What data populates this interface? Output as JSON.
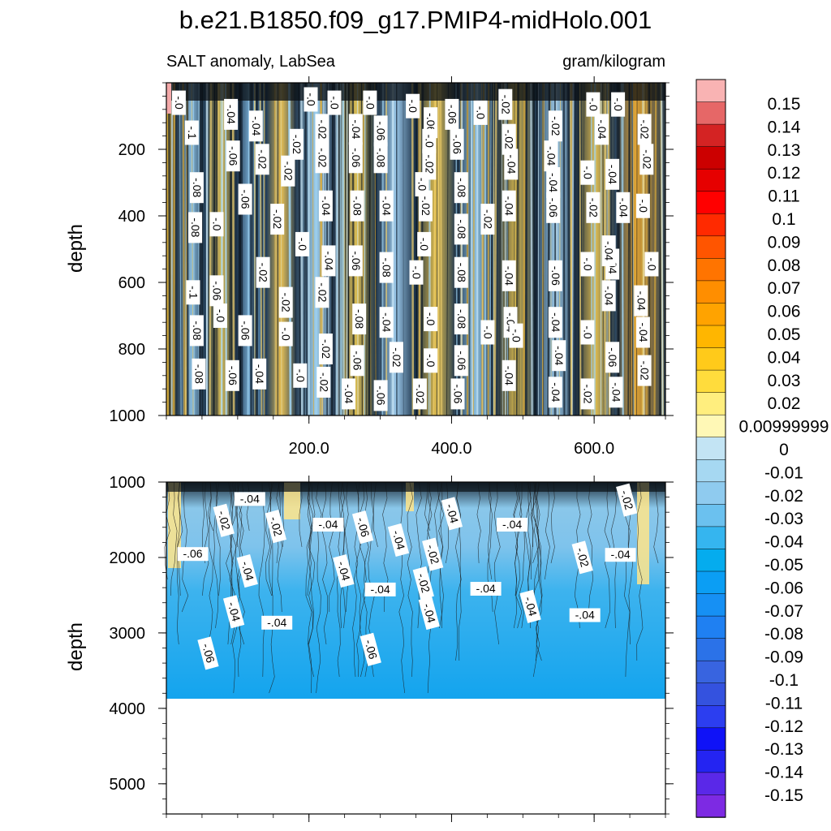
{
  "chart_data": {
    "type": "contour",
    "title": "b.e21.B1850.f09_g17.PMIP4-midHolo.001",
    "subtitle_left": "SALT anomaly, LabSea",
    "subtitle_right": "gram/kilogram",
    "panels": [
      {
        "name": "upper",
        "ylabel": "depth",
        "ylim": [
          1000,
          0
        ],
        "xlim": [
          0,
          700
        ],
        "yticks": [
          "200",
          "400",
          "600",
          "800",
          "1000"
        ],
        "ytick_values": [
          200,
          400,
          600,
          800,
          1000
        ],
        "xticks": [
          "200.0",
          "400.0",
          "600.0"
        ],
        "xtick_values": [
          200,
          400,
          600
        ],
        "contour_labels": [
          {
            "t": "-.0",
            "x": 17,
            "y": 60
          },
          {
            "t": "-.04",
            "x": 90,
            "y": 95
          },
          {
            "t": "-.04",
            "x": 125,
            "y": 130
          },
          {
            "t": "-.1",
            "x": 35,
            "y": 150
          },
          {
            "t": "-.0",
            "x": 202,
            "y": 50
          },
          {
            "t": "-.0",
            "x": 235,
            "y": 60
          },
          {
            "t": "-.0",
            "x": 285,
            "y": 60
          },
          {
            "t": "-.0",
            "x": 345,
            "y": 70
          },
          {
            "t": "-.06",
            "x": 400,
            "y": 95
          },
          {
            "t": "-.0",
            "x": 440,
            "y": 90
          },
          {
            "t": "-.02",
            "x": 475,
            "y": 65
          },
          {
            "t": "-.02",
            "x": 545,
            "y": 130
          },
          {
            "t": "-.0",
            "x": 598,
            "y": 65
          },
          {
            "t": "-.0",
            "x": 633,
            "y": 65
          },
          {
            "t": "-.02",
            "x": 218,
            "y": 140
          },
          {
            "t": "-.04",
            "x": 265,
            "y": 140
          },
          {
            "t": "-.06",
            "x": 300,
            "y": 145
          },
          {
            "t": "-.06",
            "x": 370,
            "y": 120
          },
          {
            "t": "-.04",
            "x": 610,
            "y": 140
          },
          {
            "t": "-.02",
            "x": 670,
            "y": 140
          },
          {
            "t": "-.02",
            "x": 480,
            "y": 170
          },
          {
            "t": "-.02",
            "x": 182,
            "y": 185
          },
          {
            "t": "-.02",
            "x": 368,
            "y": 245
          },
          {
            "t": "-.06",
            "x": 93,
            "y": 220
          },
          {
            "t": "-.02",
            "x": 134,
            "y": 230
          },
          {
            "t": "-.06",
            "x": 407,
            "y": 185
          },
          {
            "t": "-.04",
            "x": 539,
            "y": 220
          },
          {
            "t": "-.02",
            "x": 673,
            "y": 230
          },
          {
            "t": "-.02",
            "x": 218,
            "y": 225
          },
          {
            "t": "-.06",
            "x": 265,
            "y": 225
          },
          {
            "t": "-.08",
            "x": 300,
            "y": 225
          },
          {
            "t": "-.0",
            "x": 368,
            "y": 175
          },
          {
            "t": "-.04",
            "x": 483,
            "y": 245
          },
          {
            "t": "-.08",
            "x": 413,
            "y": 315
          },
          {
            "t": "-.02",
            "x": 170,
            "y": 265
          },
          {
            "t": "-.08",
            "x": 42,
            "y": 315
          },
          {
            "t": "-.04",
            "x": 542,
            "y": 300
          },
          {
            "t": "-.0",
            "x": 590,
            "y": 270
          },
          {
            "t": "-.04",
            "x": 625,
            "y": 275
          },
          {
            "t": "-.0",
            "x": 358,
            "y": 305
          },
          {
            "t": "-.06",
            "x": 110,
            "y": 350
          },
          {
            "t": "-.04",
            "x": 223,
            "y": 370
          },
          {
            "t": "-.08",
            "x": 267,
            "y": 370
          },
          {
            "t": "-.04",
            "x": 308,
            "y": 370
          },
          {
            "t": "-.02",
            "x": 363,
            "y": 370
          },
          {
            "t": "-.04",
            "x": 480,
            "y": 370
          },
          {
            "t": "-.06",
            "x": 542,
            "y": 375
          },
          {
            "t": "-.02",
            "x": 598,
            "y": 375
          },
          {
            "t": "-.04",
            "x": 640,
            "y": 375
          },
          {
            "t": "-.0",
            "x": 668,
            "y": 370
          },
          {
            "t": "-.08",
            "x": 40,
            "y": 435
          },
          {
            "t": "-.0",
            "x": 70,
            "y": 425
          },
          {
            "t": "-.02",
            "x": 155,
            "y": 410
          },
          {
            "t": "-.08",
            "x": 413,
            "y": 440
          },
          {
            "t": "-.02",
            "x": 450,
            "y": 410
          },
          {
            "t": "-.0",
            "x": 190,
            "y": 485
          },
          {
            "t": "-.06",
            "x": 265,
            "y": 535
          },
          {
            "t": "-.08",
            "x": 308,
            "y": 555
          },
          {
            "t": "-.0",
            "x": 361,
            "y": 485
          },
          {
            "t": "-.04",
            "x": 227,
            "y": 535
          },
          {
            "t": "-.02",
            "x": 135,
            "y": 570
          },
          {
            "t": "-.0",
            "x": 350,
            "y": 570
          },
          {
            "t": "-.08",
            "x": 413,
            "y": 570
          },
          {
            "t": "-.04",
            "x": 480,
            "y": 580
          },
          {
            "t": "-.06",
            "x": 545,
            "y": 580
          },
          {
            "t": "-.0",
            "x": 590,
            "y": 545
          },
          {
            "t": "-.04",
            "x": 625,
            "y": 545
          },
          {
            "t": "-.0",
            "x": 680,
            "y": 545
          },
          {
            "t": "-.1",
            "x": 37,
            "y": 630
          },
          {
            "t": "-.06",
            "x": 70,
            "y": 625
          },
          {
            "t": "-.02",
            "x": 167,
            "y": 660
          },
          {
            "t": "-.02",
            "x": 218,
            "y": 630
          },
          {
            "t": "-.04",
            "x": 620,
            "y": 640
          },
          {
            "t": "-.04",
            "x": 665,
            "y": 655
          },
          {
            "t": "-.08",
            "x": 42,
            "y": 745
          },
          {
            "t": "-.0",
            "x": 75,
            "y": 700
          },
          {
            "t": "-.06",
            "x": 110,
            "y": 745
          },
          {
            "t": "-.0",
            "x": 167,
            "y": 755
          },
          {
            "t": "-.08",
            "x": 270,
            "y": 710
          },
          {
            "t": "-.04",
            "x": 308,
            "y": 720
          },
          {
            "t": "-.0",
            "x": 370,
            "y": 710
          },
          {
            "t": "-.08",
            "x": 413,
            "y": 710
          },
          {
            "t": "-.0",
            "x": 450,
            "y": 750
          },
          {
            "t": "-.04",
            "x": 482,
            "y": 720
          },
          {
            "t": "-.04",
            "x": 545,
            "y": 720
          },
          {
            "t": "-.0",
            "x": 590,
            "y": 750
          },
          {
            "t": "-.04",
            "x": 668,
            "y": 750
          },
          {
            "t": "-.02",
            "x": 223,
            "y": 800
          },
          {
            "t": "-.06",
            "x": 267,
            "y": 835
          },
          {
            "t": "-.02",
            "x": 322,
            "y": 825
          },
          {
            "t": "-.0",
            "x": 370,
            "y": 835
          },
          {
            "t": "-.06",
            "x": 413,
            "y": 835
          },
          {
            "t": "-.04",
            "x": 550,
            "y": 820
          },
          {
            "t": "-.06",
            "x": 625,
            "y": 825
          },
          {
            "t": "-.02",
            "x": 670,
            "y": 865
          },
          {
            "t": "-.08",
            "x": 45,
            "y": 875
          },
          {
            "t": "-.06",
            "x": 92,
            "y": 880
          },
          {
            "t": "-.04",
            "x": 130,
            "y": 875
          },
          {
            "t": "-.0",
            "x": 187,
            "y": 880
          },
          {
            "t": "-.02",
            "x": 220,
            "y": 900
          },
          {
            "t": "-.04",
            "x": 255,
            "y": 935
          },
          {
            "t": "-.06",
            "x": 300,
            "y": 940
          },
          {
            "t": "-.02",
            "x": 355,
            "y": 935
          },
          {
            "t": "-.06",
            "x": 408,
            "y": 935
          },
          {
            "t": "-.04",
            "x": 480,
            "y": 880
          },
          {
            "t": "-.04",
            "x": 545,
            "y": 930
          },
          {
            "t": "-.02",
            "x": 590,
            "y": 935
          },
          {
            "t": "-.04",
            "x": 630,
            "y": 930
          },
          {
            "t": "-.0",
            "x": 490,
            "y": 760
          },
          {
            "t": "-.04",
            "x": 620,
            "y": 505
          }
        ]
      },
      {
        "name": "lower",
        "ylabel": "depth",
        "ylim": [
          5400,
          1000
        ],
        "xlim": [
          0,
          700
        ],
        "yticks": [
          "1000",
          "2000",
          "3000",
          "4000",
          "5000"
        ],
        "ytick_values": [
          1000,
          2000,
          3000,
          4000,
          5000
        ],
        "bottom_of_data": 3880,
        "contour_labels": [
          {
            "t": "-.04",
            "x": 117,
            "y": 1230
          },
          {
            "t": "-.02",
            "x": 80,
            "y": 1510
          },
          {
            "t": "-.02",
            "x": 153,
            "y": 1590
          },
          {
            "t": "-.04",
            "x": 227,
            "y": 1570
          },
          {
            "t": "-.06",
            "x": 275,
            "y": 1600
          },
          {
            "t": "-.04",
            "x": 400,
            "y": 1420
          },
          {
            "t": "-.04",
            "x": 485,
            "y": 1570
          },
          {
            "t": "-.04",
            "x": 325,
            "y": 1770
          },
          {
            "t": "-.02",
            "x": 373,
            "y": 1960
          },
          {
            "t": "-.06",
            "x": 37,
            "y": 1960
          },
          {
            "t": "-.04",
            "x": 113,
            "y": 2180
          },
          {
            "t": "-.04",
            "x": 248,
            "y": 2180
          },
          {
            "t": "-.04",
            "x": 300,
            "y": 2430
          },
          {
            "t": "-.02",
            "x": 360,
            "y": 2340
          },
          {
            "t": "-.04",
            "x": 368,
            "y": 2740
          },
          {
            "t": "-.04",
            "x": 448,
            "y": 2420
          },
          {
            "t": "-.04",
            "x": 510,
            "y": 2650
          },
          {
            "t": "-.02",
            "x": 583,
            "y": 2000
          },
          {
            "t": "-.04",
            "x": 637,
            "y": 1970
          },
          {
            "t": "-.02",
            "x": 645,
            "y": 1240
          },
          {
            "t": "-.04",
            "x": 94,
            "y": 2720
          },
          {
            "t": "-.04",
            "x": 155,
            "y": 2870
          },
          {
            "t": "-.06",
            "x": 58,
            "y": 3270
          },
          {
            "t": "-.06",
            "x": 286,
            "y": 3220
          },
          {
            "t": "-.04",
            "x": 587,
            "y": 2770
          }
        ]
      }
    ],
    "colorbar": {
      "labels": [
        "0.15",
        "0.14",
        "0.13",
        "0.12",
        "0.11",
        "0.1",
        "0.09",
        "0.08",
        "0.07",
        "0.06",
        "0.05",
        "0.04",
        "0.03",
        "0.02",
        "0.00999999",
        "0",
        "-0.01",
        "-0.02",
        "-0.03",
        "-0.04",
        "-0.05",
        "-0.06",
        "-0.07",
        "-0.08",
        "-0.09",
        "-0.1",
        "-0.11",
        "-0.12",
        "-0.13",
        "-0.14",
        "-0.15"
      ],
      "colors": [
        "#f9b3b3",
        "#e66767",
        "#d42323",
        "#cc0000",
        "#e60000",
        "#ff0000",
        "#ff2a00",
        "#ff5500",
        "#ff7400",
        "#ff8e00",
        "#ffa300",
        "#ffb600",
        "#ffca1a",
        "#ffdc3c",
        "#ffee7e",
        "#fff8b6",
        "#c3e4f4",
        "#a6d8f2",
        "#8fcbef",
        "#6bc1ef",
        "#35b5ef",
        "#05acee",
        "#0b9ef4",
        "#1690f4",
        "#1f80f2",
        "#2b72e8",
        "#3864e0",
        "#3452df",
        "#2c3ef0",
        "#0f12f7",
        "#2424f2",
        "#5a28e8",
        "#7d2ae3"
      ]
    }
  }
}
